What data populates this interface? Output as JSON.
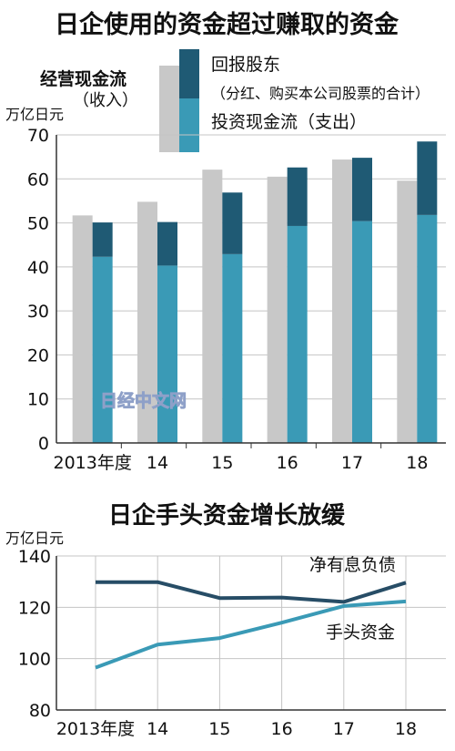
{
  "watermark": "日经中文网",
  "chart_data": [
    {
      "type": "bar",
      "title": "日企使用的资金超过赚取的资金",
      "ylabel": "万亿日元",
      "ylim": [
        0,
        70
      ],
      "yticks": [
        0,
        10,
        20,
        30,
        40,
        50,
        60,
        70
      ],
      "categories": [
        "2013年度",
        "14",
        "15",
        "16",
        "17",
        "18"
      ],
      "legend": {
        "operating_label_line1": "经营现金流",
        "operating_label_line2": "（收入）",
        "buyback_label_line1": "回报股东",
        "buyback_label_line2": "（分红、购买本公司股票的合计）",
        "investment_label": "投资现金流（支出）"
      },
      "series": [
        {
          "name": "经营现金流（收入）",
          "color": "#c8c8c8",
          "values": [
            51.7,
            54.8,
            62.1,
            60.5,
            64.4,
            59.6
          ]
        },
        {
          "name": "投资现金流（支出）",
          "color": "#3a9ab6",
          "stack": "out",
          "values": [
            42.3,
            40.3,
            42.9,
            49.3,
            50.4,
            51.8
          ]
        },
        {
          "name": "回报股东（分红、购买本公司股票的合计）",
          "color": "#1f5a74",
          "stack": "out",
          "values": [
            7.8,
            9.9,
            14.0,
            13.3,
            14.4,
            16.7
          ]
        }
      ]
    },
    {
      "type": "line",
      "title": "日企手头资金增长放缓",
      "ylabel": "万亿日元",
      "ylim": [
        80,
        140
      ],
      "yticks": [
        80,
        100,
        120,
        140
      ],
      "categories": [
        "2013年度",
        "14",
        "15",
        "16",
        "17",
        "18"
      ],
      "series": [
        {
          "name": "净有息负债",
          "color": "#274d66",
          "values": [
            129.8,
            129.8,
            123.6,
            123.8,
            122.1,
            129.6
          ]
        },
        {
          "name": "手头资金",
          "color": "#3a9ab6",
          "values": [
            96.5,
            105.5,
            108.0,
            114.0,
            120.5,
            122.3
          ]
        }
      ]
    }
  ]
}
